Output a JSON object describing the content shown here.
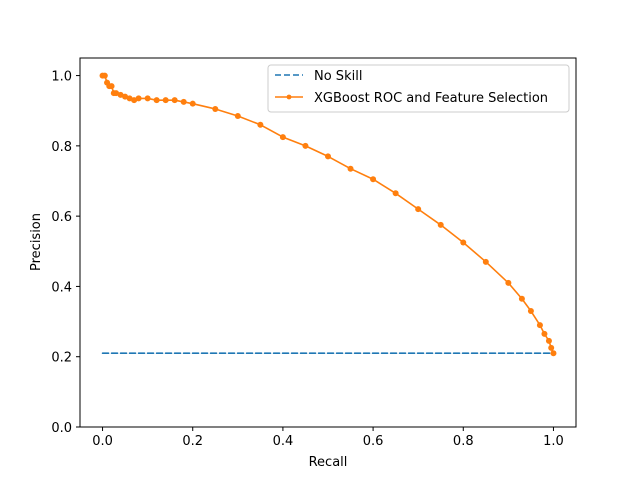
{
  "chart_data": {
    "type": "line",
    "xlabel": "Recall",
    "ylabel": "Precision",
    "xlim": [
      -0.05,
      1.05
    ],
    "ylim": [
      0.0,
      1.05
    ],
    "xticks": [
      "0.0",
      "0.2",
      "0.4",
      "0.6",
      "0.8",
      "1.0"
    ],
    "yticks": [
      "0.0",
      "0.2",
      "0.4",
      "0.6",
      "0.8",
      "1.0"
    ],
    "grid": false,
    "legend_position": "top-right",
    "series": [
      {
        "name": "No Skill",
        "style": "dashed",
        "color": "#1f77b4",
        "x": [
          0.0,
          1.0
        ],
        "y": [
          0.21,
          0.21
        ]
      },
      {
        "name": "XGBoost ROC and Feature Selection",
        "style": "solid-dot",
        "color": "#ff7f0e",
        "x": [
          0.0,
          0.005,
          0.01,
          0.015,
          0.02,
          0.025,
          0.03,
          0.04,
          0.05,
          0.06,
          0.07,
          0.08,
          0.1,
          0.12,
          0.14,
          0.16,
          0.18,
          0.2,
          0.25,
          0.3,
          0.35,
          0.4,
          0.45,
          0.5,
          0.55,
          0.6,
          0.65,
          0.7,
          0.75,
          0.8,
          0.85,
          0.9,
          0.93,
          0.95,
          0.97,
          0.98,
          0.99,
          0.995,
          1.0
        ],
        "y": [
          1.0,
          1.0,
          0.98,
          0.97,
          0.97,
          0.95,
          0.95,
          0.945,
          0.94,
          0.935,
          0.93,
          0.935,
          0.935,
          0.93,
          0.93,
          0.93,
          0.925,
          0.92,
          0.905,
          0.885,
          0.86,
          0.825,
          0.8,
          0.77,
          0.735,
          0.705,
          0.665,
          0.62,
          0.575,
          0.525,
          0.47,
          0.41,
          0.365,
          0.33,
          0.29,
          0.265,
          0.245,
          0.225,
          0.21
        ]
      }
    ]
  }
}
